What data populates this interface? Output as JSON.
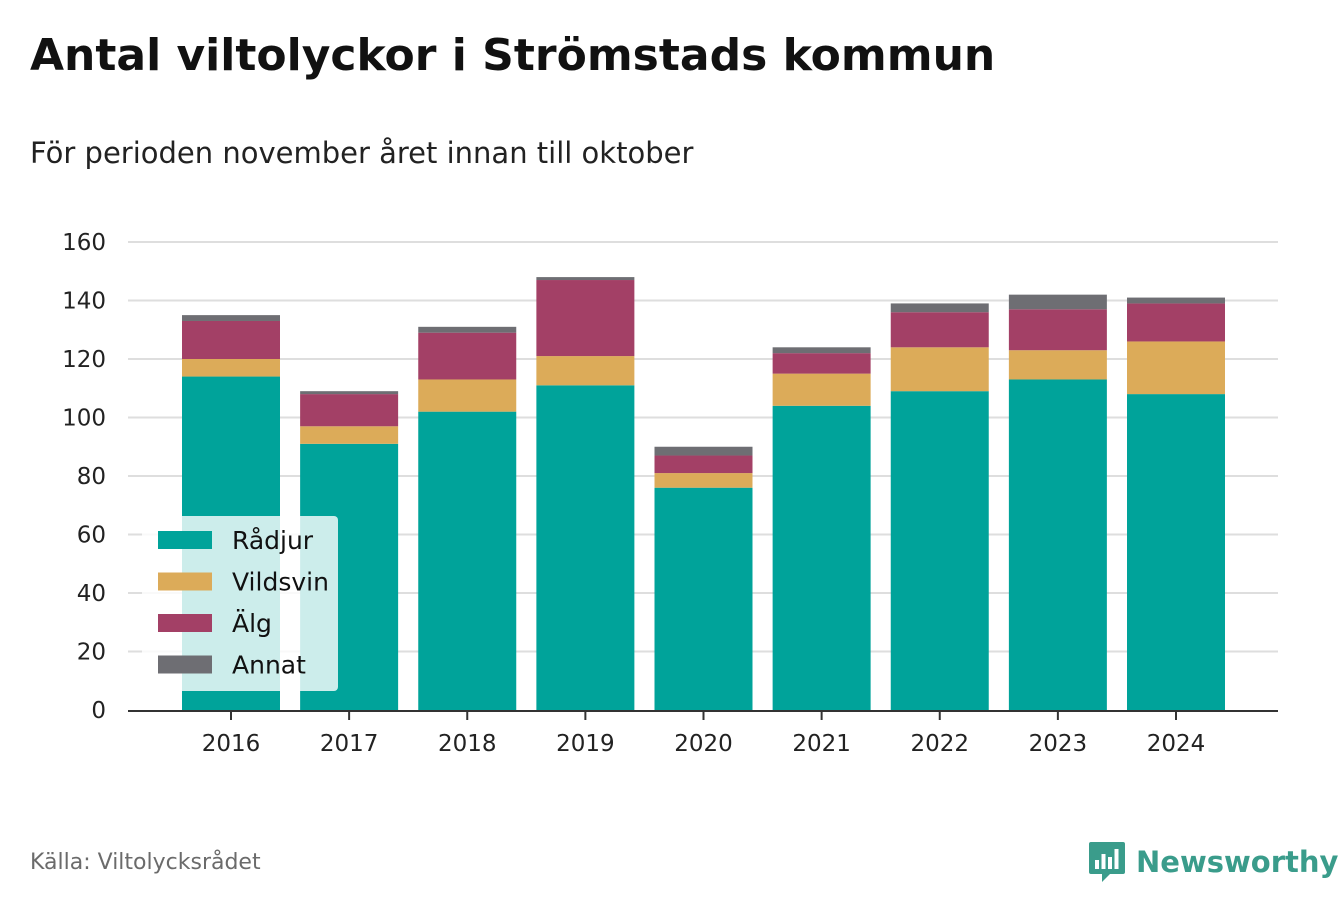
{
  "header": {
    "title": "Antal viltolyckor i Strömstads kommun",
    "subtitle": "För perioden november året innan till oktober"
  },
  "footer": {
    "source": "Källa: Viltolycksrådet",
    "brand": "Newsworthy"
  },
  "chart_data": {
    "type": "bar",
    "stacked": true,
    "title": "Antal viltolyckor i Strömstads kommun",
    "subtitle": "För perioden november året innan till oktober",
    "xlabel": "",
    "ylabel": "",
    "categories": [
      "2016",
      "2017",
      "2018",
      "2019",
      "2020",
      "2021",
      "2022",
      "2023",
      "2024"
    ],
    "series": [
      {
        "name": "Rådjur",
        "color": "#00a39a",
        "values": [
          114,
          91,
          102,
          111,
          76,
          104,
          109,
          113,
          108
        ]
      },
      {
        "name": "Vildsvin",
        "color": "#dcab59",
        "values": [
          6,
          6,
          11,
          10,
          5,
          11,
          15,
          10,
          18
        ]
      },
      {
        "name": "Älg",
        "color": "#a34066",
        "values": [
          13,
          11,
          16,
          26,
          6,
          7,
          12,
          14,
          13
        ]
      },
      {
        "name": "Annat",
        "color": "#6e6e73",
        "values": [
          2,
          1,
          2,
          1,
          3,
          2,
          3,
          5,
          2
        ]
      }
    ],
    "ylim": [
      0,
      160
    ],
    "yticks": [
      0,
      20,
      40,
      60,
      80,
      100,
      120,
      140,
      160
    ],
    "grid": true,
    "legend_position": "bottom-left"
  }
}
